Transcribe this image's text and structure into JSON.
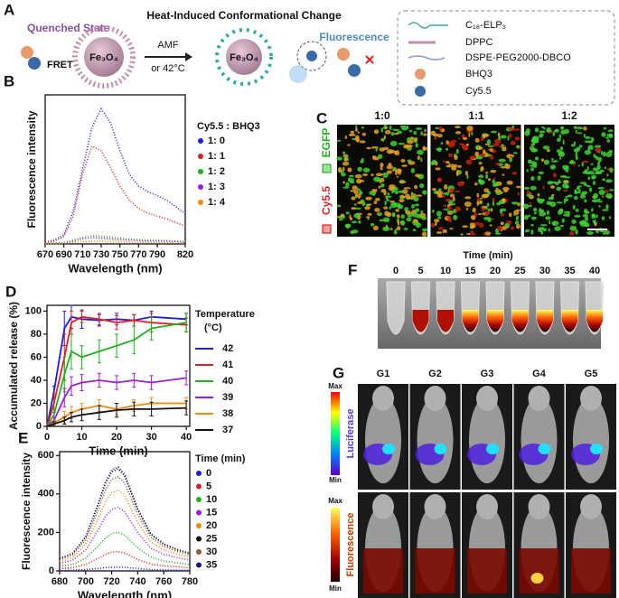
{
  "panel_a": {
    "label": "A",
    "title": "Heat-Induced Conformational Change",
    "quenched": "Quenched State",
    "fret": "FRET",
    "core": "Fe₃O₄",
    "core_heated": "Fe₃O₄",
    "amf": "AMF",
    "trigger": "or 42°C",
    "fluorescence": "Fluorescence",
    "legend": [
      "C₁₈-ELP₃",
      "DPPC",
      "DSPE-PEG2000-DBCO",
      "BHQ3",
      "Cy5.5"
    ]
  },
  "panel_c": {
    "label": "C",
    "columns": [
      "1:0",
      "1:1",
      "1:2"
    ],
    "channel_red": "Cy5.5",
    "channel_green": "EGFP"
  },
  "panel_f": {
    "label": "F",
    "title": "Time (min)",
    "times": [
      "0",
      "5",
      "10",
      "15",
      "20",
      "25",
      "30",
      "35",
      "40"
    ]
  },
  "panel_g": {
    "label": "G",
    "groups": [
      "G1",
      "G2",
      "G3",
      "G4",
      "G5"
    ],
    "top_max": "Max",
    "top_min": "Min",
    "top_channel": "Luciferase",
    "bottom_max": "Max",
    "bottom_min": "Min",
    "bottom_channel": "Fluorescence"
  },
  "chart_data": [
    {
      "type": "line",
      "label": "B",
      "style": "dotted",
      "xlabel": "Wavelength (nm)",
      "ylabel": "Fluorescence intensity",
      "legend_title": "Cy5.5 : BHQ3",
      "x": [
        670,
        680,
        690,
        700,
        710,
        720,
        730,
        740,
        750,
        760,
        770,
        780,
        790,
        800,
        810,
        820
      ],
      "xlim": [
        670,
        820
      ],
      "xticks": [
        670,
        690,
        710,
        730,
        750,
        770,
        790,
        820
      ],
      "ylim": [
        0,
        1600
      ],
      "series": [
        {
          "name": "1: 0",
          "color": "#1f1fe0",
          "values": [
            20,
            40,
            100,
            350,
            800,
            1250,
            1450,
            1300,
            1000,
            750,
            620,
            560,
            520,
            470,
            400,
            320
          ]
        },
        {
          "name": "1: 1",
          "color": "#e02020",
          "values": [
            15,
            30,
            80,
            300,
            750,
            1050,
            1000,
            820,
            620,
            470,
            380,
            330,
            300,
            270,
            230,
            190
          ]
        },
        {
          "name": "1: 2",
          "color": "#1fb01f",
          "values": [
            5,
            8,
            15,
            40,
            70,
            85,
            80,
            70,
            60,
            50,
            45,
            40,
            38,
            35,
            30,
            25
          ]
        },
        {
          "name": "1: 3",
          "color": "#9b1fd0",
          "values": [
            3,
            5,
            10,
            30,
            55,
            65,
            60,
            52,
            45,
            40,
            35,
            32,
            30,
            28,
            25,
            20
          ]
        },
        {
          "name": "1: 4",
          "color": "#f08a10",
          "values": [
            2,
            3,
            6,
            15,
            25,
            30,
            28,
            25,
            22,
            20,
            18,
            16,
            15,
            14,
            12,
            10
          ]
        }
      ]
    },
    {
      "type": "line",
      "label": "D",
      "style": "solid",
      "xlabel": "Time (min)",
      "ylabel": "Accumulated release (%)",
      "legend_title": "Temperature",
      "legend_subtitle": "(°C)",
      "x": [
        0,
        2,
        5,
        7,
        10,
        15,
        20,
        25,
        30,
        40
      ],
      "xlim": [
        0,
        41
      ],
      "xticks": [
        0,
        10,
        20,
        30,
        40
      ],
      "ylim": [
        0,
        105
      ],
      "yticks": [
        0,
        20,
        40,
        60,
        80,
        100
      ],
      "series": [
        {
          "name": "42",
          "color": "#1f1fe0",
          "values": [
            0,
            30,
            85,
            95,
            93,
            92,
            93,
            92,
            95,
            93
          ],
          "errors": [
            0,
            5,
            15,
            10,
            8,
            5,
            5,
            5,
            5,
            5
          ]
        },
        {
          "name": "41",
          "color": "#e02020",
          "values": [
            0,
            20,
            60,
            90,
            95,
            93,
            90,
            92,
            90,
            88
          ],
          "errors": [
            0,
            8,
            20,
            10,
            5,
            5,
            6,
            5,
            8,
            6
          ]
        },
        {
          "name": "40",
          "color": "#1fb01f",
          "values": [
            0,
            10,
            45,
            65,
            60,
            65,
            70,
            75,
            85,
            90
          ],
          "errors": [
            0,
            5,
            15,
            15,
            10,
            10,
            10,
            12,
            10,
            8
          ]
        },
        {
          "name": "39",
          "color": "#9b1fd0",
          "values": [
            0,
            5,
            25,
            35,
            38,
            40,
            38,
            40,
            38,
            42
          ],
          "errors": [
            0,
            3,
            8,
            8,
            7,
            6,
            6,
            6,
            6,
            6
          ]
        },
        {
          "name": "38",
          "color": "#f08a10",
          "values": [
            0,
            3,
            8,
            12,
            15,
            18,
            15,
            18,
            20,
            20
          ],
          "errors": [
            0,
            2,
            5,
            5,
            5,
            5,
            5,
            5,
            5,
            5
          ]
        },
        {
          "name": "37",
          "color": "#111111",
          "values": [
            0,
            2,
            5,
            8,
            10,
            12,
            14,
            15,
            15,
            16
          ],
          "errors": [
            0,
            2,
            3,
            4,
            5,
            6,
            6,
            6,
            6,
            6
          ]
        }
      ]
    },
    {
      "type": "line",
      "label": "E",
      "style": "dotted",
      "xlabel": "Wavelength (nm)",
      "ylabel": "Fluorescence intensity",
      "legend_title": "Time (min)",
      "x": [
        680,
        690,
        700,
        710,
        715,
        720,
        725,
        730,
        740,
        750,
        760,
        770,
        780
      ],
      "xlim": [
        680,
        780
      ],
      "xticks": [
        680,
        700,
        720,
        740,
        760,
        780
      ],
      "ylim": [
        0,
        620
      ],
      "yticks": [
        0,
        200,
        400,
        600
      ],
      "series": [
        {
          "name": "0",
          "color": "#1f1fe0",
          "values": [
            2,
            3,
            7,
            13,
            17,
            19,
            20,
            19,
            12,
            7,
            5,
            4,
            3
          ]
        },
        {
          "name": "5",
          "color": "#e02020",
          "values": [
            12,
            17,
            33,
            66,
            85,
            97,
            100,
            93,
            60,
            36,
            26,
            21,
            17
          ]
        },
        {
          "name": "10",
          "color": "#1fb01f",
          "values": [
            24,
            34,
            66,
            132,
            170,
            194,
            200,
            186,
            120,
            72,
            52,
            42,
            34
          ]
        },
        {
          "name": "15",
          "color": "#9b1fd0",
          "values": [
            40,
            56,
            109,
            218,
            281,
            320,
            330,
            307,
            198,
            119,
            86,
            69,
            56
          ]
        },
        {
          "name": "20",
          "color": "#f08a10",
          "values": [
            50,
            71,
            139,
            277,
            357,
            407,
            420,
            391,
            252,
            151,
            109,
            88,
            71
          ]
        },
        {
          "name": "25",
          "color": "#111111",
          "values": [
            64,
            90,
            175,
            350,
            451,
            514,
            530,
            493,
            318,
            191,
            138,
            111,
            90
          ]
        },
        {
          "name": "30",
          "color": "#8b5a2b",
          "values": [
            59,
            83,
            162,
            323,
            417,
            475,
            490,
            456,
            294,
            176,
            127,
            103,
            83
          ]
        },
        {
          "name": "35",
          "color": "#1a1a7a",
          "values": [
            65,
            92,
            178,
            356,
            459,
            524,
            540,
            502,
            324,
            194,
            140,
            113,
            92
          ]
        }
      ]
    }
  ]
}
